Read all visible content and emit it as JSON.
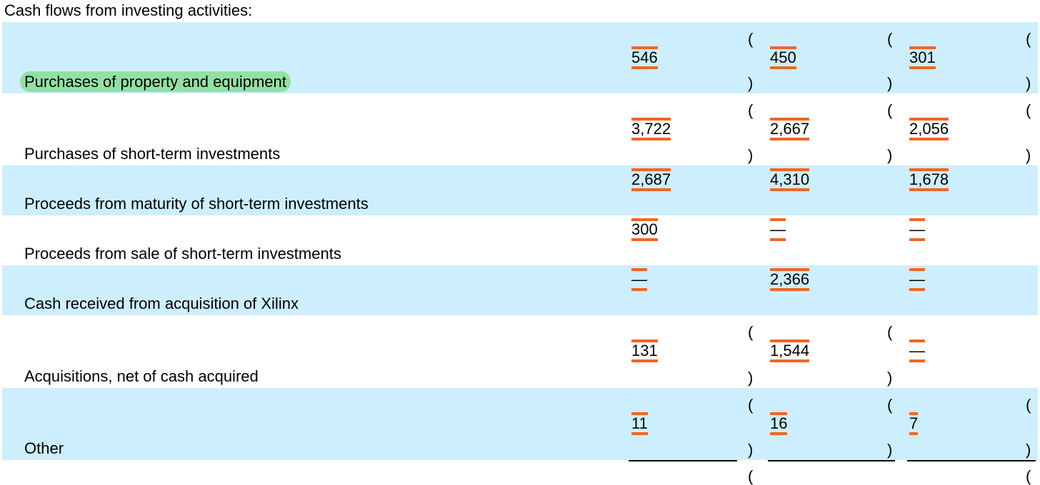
{
  "header": {
    "title": "Cash flows from investing activities:"
  },
  "table": {
    "rows": [
      {
        "label": "Purchases of property and equipment",
        "cells": [
          {
            "open": "(",
            "value": "546",
            "close": ")"
          },
          {
            "open": "(",
            "value": "450",
            "close": ")"
          },
          {
            "open": "(",
            "value": "301",
            "close": ")"
          }
        ]
      },
      {
        "label": "Purchases of short-term investments",
        "cells": [
          {
            "open": "(",
            "value": "3,722",
            "close": ")"
          },
          {
            "open": "(",
            "value": "2,667",
            "close": ")"
          },
          {
            "open": "(",
            "value": "2,056",
            "close": ")"
          }
        ]
      },
      {
        "label": "Proceeds from maturity of short-term investments",
        "cells": [
          {
            "value": "2,687"
          },
          {
            "value": "4,310"
          },
          {
            "value": "1,678"
          }
        ]
      },
      {
        "label": "Proceeds from sale of short-term investments",
        "cells": [
          {
            "value": "300"
          },
          {
            "value": "—"
          },
          {
            "value": "—"
          }
        ]
      },
      {
        "label": "Cash received from acquisition of Xilinx",
        "cells": [
          {
            "value": "—"
          },
          {
            "value": "2,366"
          },
          {
            "value": "—"
          }
        ]
      },
      {
        "label": "Acquisitions, net of cash acquired",
        "cells": [
          {
            "open": "(",
            "value": "131",
            "close": ")"
          },
          {
            "open": "(",
            "value": "1,544",
            "close": ")"
          },
          {
            "value": "—"
          }
        ]
      },
      {
        "label": "Other",
        "cells": [
          {
            "open": "(",
            "value": "11",
            "close": ")"
          },
          {
            "open": "(",
            "value": "16",
            "close": ")"
          },
          {
            "open": "(",
            "value": "7",
            "close": ")"
          }
        ]
      }
    ],
    "next_row": {
      "cells": [
        {
          "open": "("
        },
        {},
        {
          "open": "("
        }
      ]
    }
  }
}
